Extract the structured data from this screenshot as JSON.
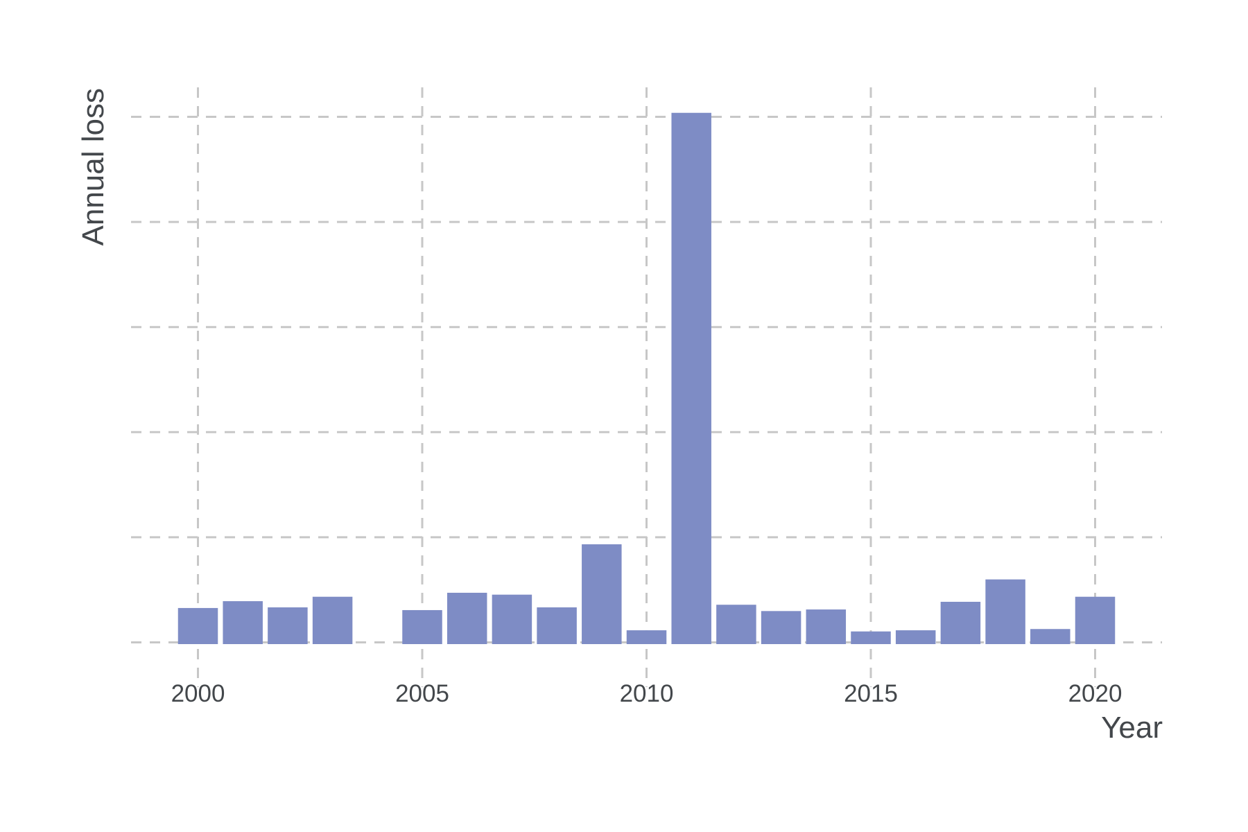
{
  "chart_data": {
    "type": "bar",
    "title": "",
    "xlabel": "Year",
    "ylabel": "Annual loss",
    "categories": [
      2000,
      2001,
      2002,
      2003,
      2004,
      2005,
      2006,
      2007,
      2008,
      2009,
      2010,
      2011,
      2012,
      2013,
      2014,
      2015,
      2016,
      2017,
      2018,
      2019,
      2020
    ],
    "values": [
      0.327,
      0.392,
      0.333,
      0.434,
      null,
      0.307,
      0.472,
      0.454,
      0.333,
      0.933,
      0.115,
      5.038,
      0.358,
      0.298,
      0.313,
      0.104,
      0.115,
      0.386,
      0.599,
      0.127,
      0.434
    ],
    "x_tick_years": [
      2000,
      2005,
      2010,
      2015,
      2020
    ],
    "x_tick_labels": [
      "2000",
      "2005",
      "2010",
      "2015",
      "2020"
    ],
    "y_gridline_values": [
      0,
      1,
      2,
      3,
      4,
      5
    ],
    "y_tick_labels": [],
    "xlim": [
      1998.5,
      2021.5
    ],
    "ylim": [
      -0.43,
      5.28
    ],
    "grid": "both-dashed",
    "legend_position": "none",
    "colors": {
      "bar": "#7e8cc5",
      "grid": "#c7c7c7",
      "text": "#43474b",
      "background": "#ffffff"
    }
  }
}
